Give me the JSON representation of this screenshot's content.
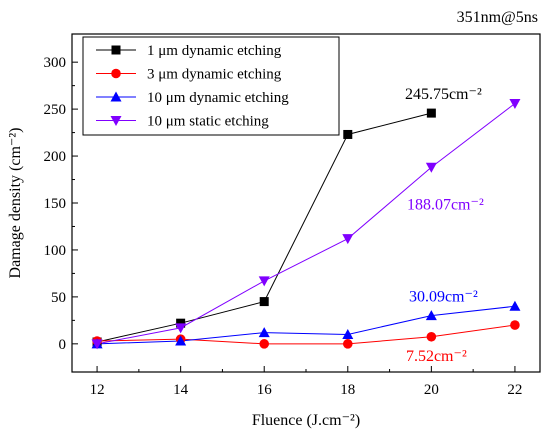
{
  "chart_data": {
    "type": "line",
    "title": "",
    "corner_label": "351nm@5ns",
    "xlabel": "Fluence (J.cm⁻²)",
    "ylabel": "Damage density (cm⁻²)",
    "xlim": [
      11.4,
      22.6
    ],
    "ylim": [
      -30,
      330
    ],
    "xticks": [
      12,
      14,
      16,
      18,
      20,
      22
    ],
    "yticks": [
      0,
      50,
      100,
      150,
      200,
      250,
      300
    ],
    "grid": false,
    "legend_position": "top-left",
    "series": [
      {
        "name": "1 μm   dynamic etching",
        "color": "#000000",
        "marker": "square",
        "x": [
          12,
          14,
          16,
          18,
          20
        ],
        "y": [
          2,
          22,
          45,
          223,
          245.75
        ]
      },
      {
        "name": "3 μm   dynamic etching",
        "color": "#ff0000",
        "marker": "circle",
        "x": [
          12,
          14,
          16,
          18,
          20,
          22
        ],
        "y": [
          3,
          5,
          0,
          0,
          7.52,
          20
        ]
      },
      {
        "name": "10 μm dynamic etching",
        "color": "#0000ff",
        "marker": "triangle-up",
        "x": [
          12,
          14,
          16,
          18,
          20,
          22
        ],
        "y": [
          0,
          3,
          12,
          10,
          30.09,
          40
        ]
      },
      {
        "name": "10 μm static etching",
        "color": "#8000ff",
        "marker": "triangle-down",
        "x": [
          12,
          14,
          16,
          18,
          20,
          22
        ],
        "y": [
          0,
          17,
          67,
          112,
          188.07,
          256
        ]
      }
    ],
    "annotations": [
      {
        "text": "245.75cm⁻²",
        "color": "#000000",
        "x": 20,
        "y": 245.75,
        "anchor": "above"
      },
      {
        "text": "188.07cm⁻²",
        "color": "#8000ff",
        "x": 20,
        "y": 188.07,
        "anchor": "below-right"
      },
      {
        "text": "30.09cm⁻²",
        "color": "#0000ff",
        "x": 20,
        "y": 30.09,
        "anchor": "above"
      },
      {
        "text": "7.52cm⁻²",
        "color": "#ff0000",
        "x": 20,
        "y": 7.52,
        "anchor": "below"
      }
    ]
  }
}
